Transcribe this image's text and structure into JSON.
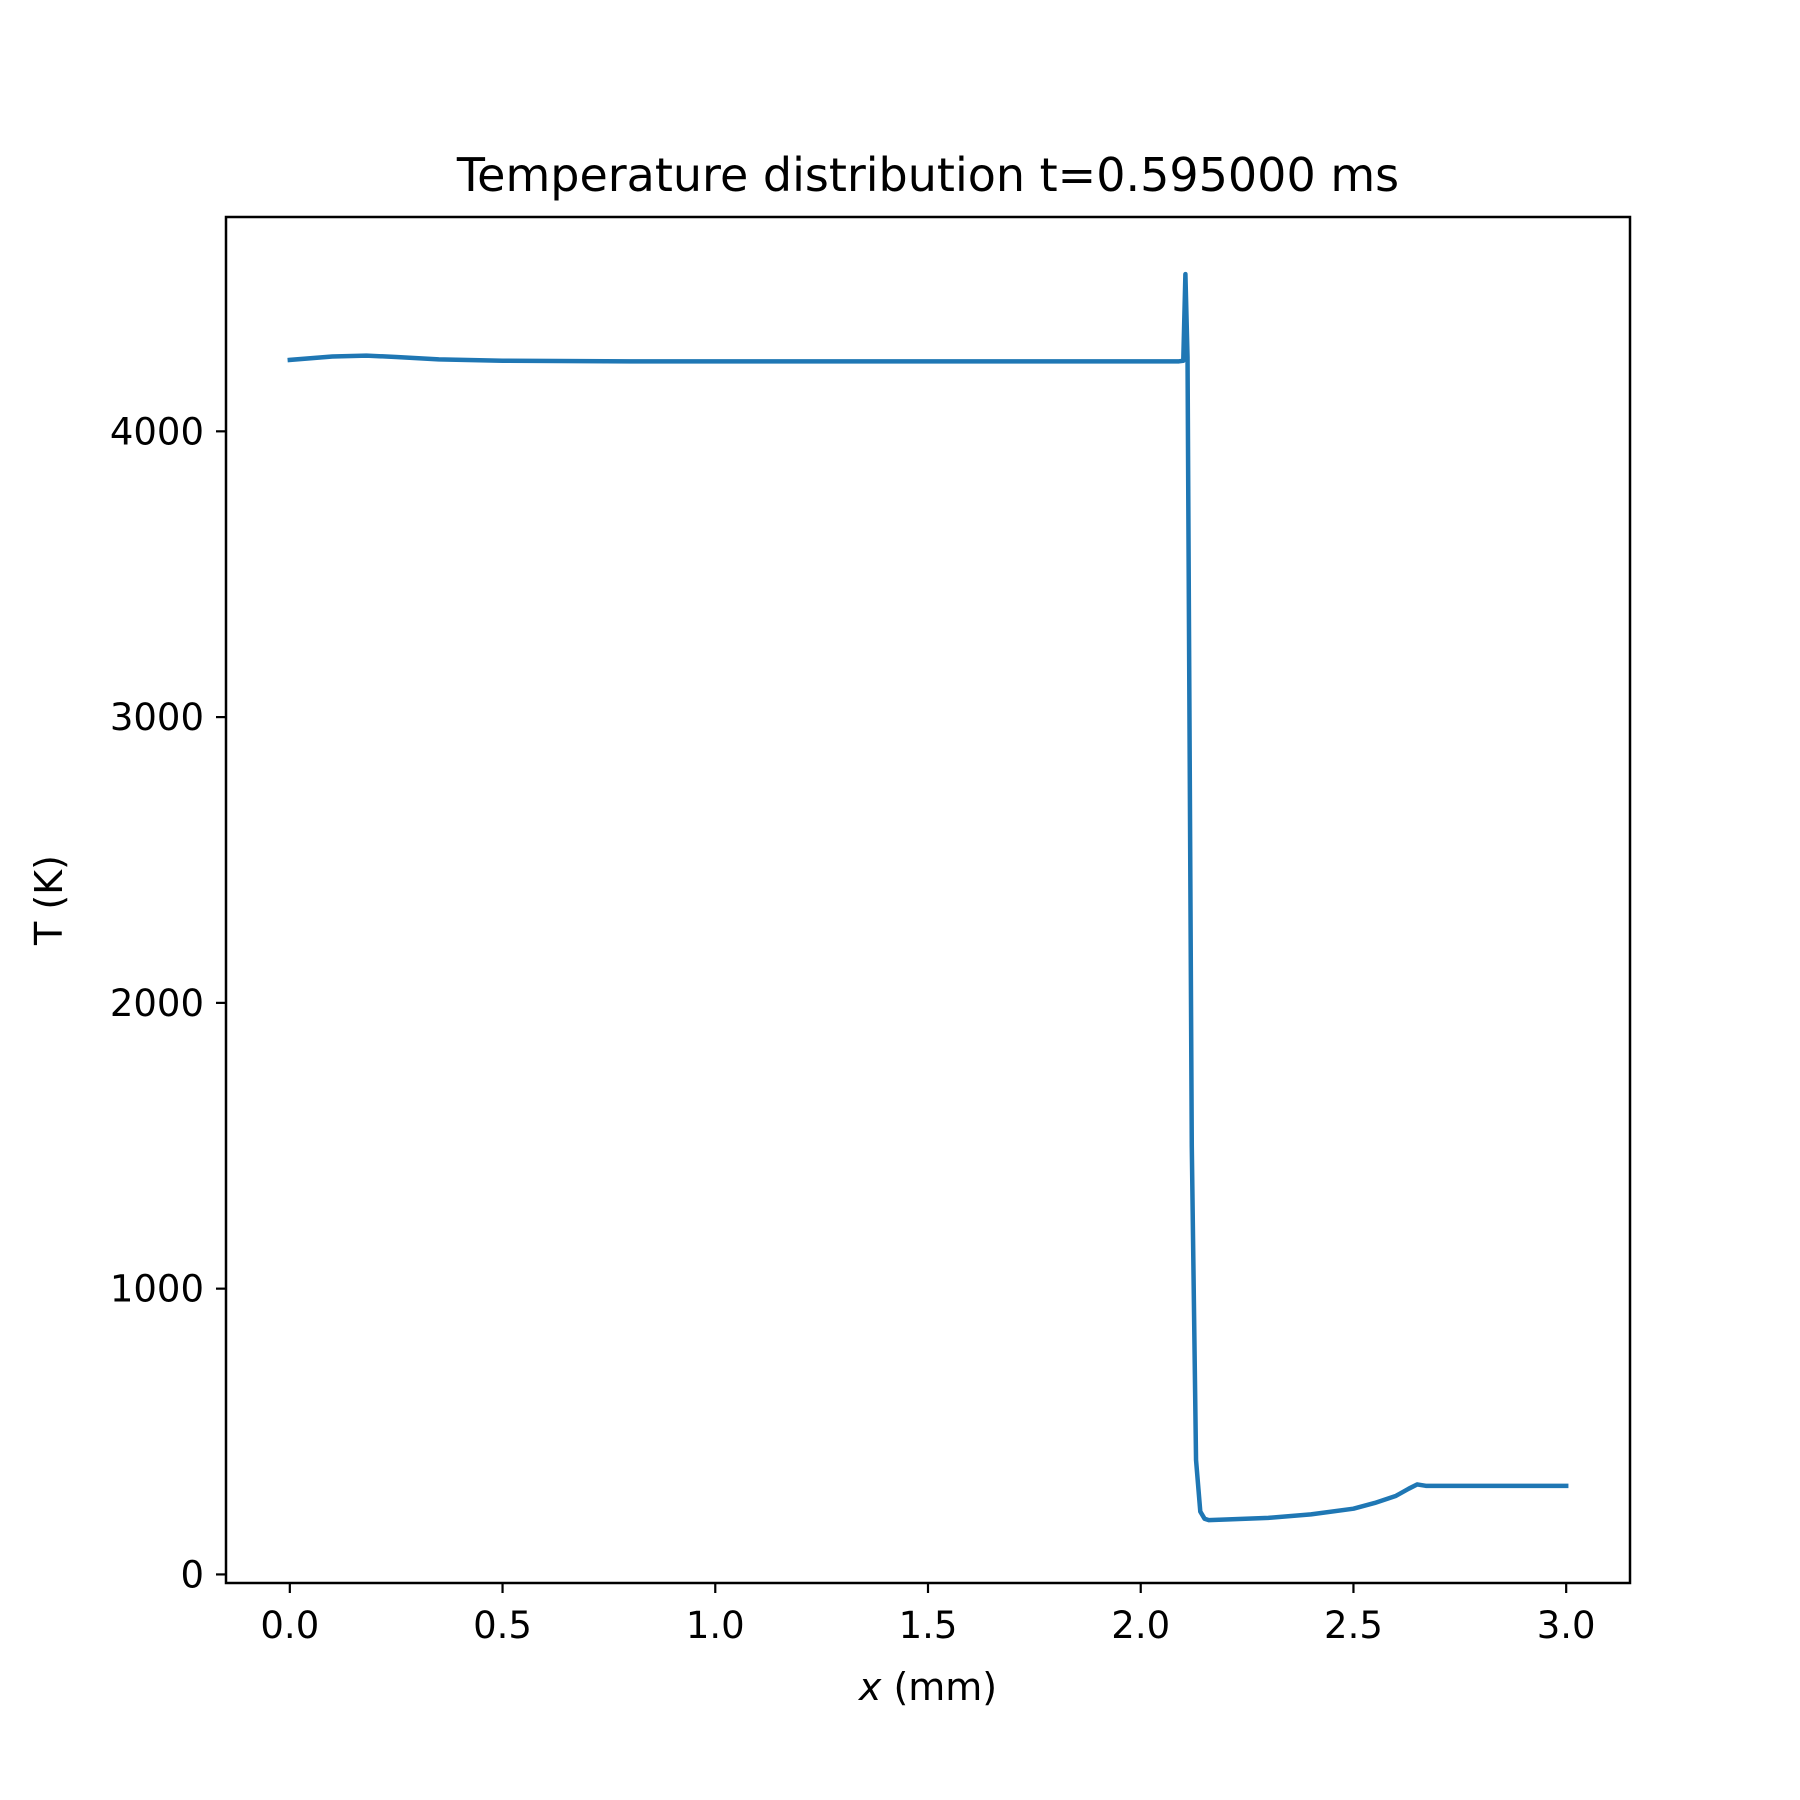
{
  "chart_data": {
    "type": "line",
    "title": "Temperature distribution t=0.595000 ms",
    "xlabel_var": "x",
    "xlabel_unit": " (mm)",
    "ylabel": "T (K)",
    "xlim": [
      -0.15,
      3.15
    ],
    "ylim": [
      -30,
      4750
    ],
    "x_ticks": [
      0.0,
      0.5,
      1.0,
      1.5,
      2.0,
      2.5,
      3.0
    ],
    "x_tick_labels": [
      "0.0",
      "0.5",
      "1.0",
      "1.5",
      "2.0",
      "2.5",
      "3.0"
    ],
    "y_ticks": [
      0,
      1000,
      2000,
      3000,
      4000
    ],
    "y_tick_labels": [
      "0",
      "1000",
      "2000",
      "3000",
      "4000"
    ],
    "grid": false,
    "color": "#1f77b4",
    "series": [
      {
        "x": [
          0.0,
          0.1,
          0.18,
          0.25,
          0.35,
          0.5,
          0.8,
          1.2,
          1.6,
          2.0,
          2.09,
          2.1,
          2.105,
          2.11,
          2.12,
          2.13,
          2.14,
          2.15,
          2.16,
          2.2,
          2.3,
          2.4,
          2.5,
          2.55,
          2.6,
          2.63,
          2.65,
          2.67,
          2.7,
          3.0
        ],
        "y": [
          4250,
          4262,
          4265,
          4260,
          4252,
          4247,
          4245,
          4245,
          4245,
          4245,
          4245,
          4247,
          4550,
          4260,
          1500,
          400,
          220,
          195,
          190,
          192,
          198,
          210,
          230,
          250,
          275,
          300,
          315,
          310,
          310,
          310
        ]
      }
    ]
  }
}
